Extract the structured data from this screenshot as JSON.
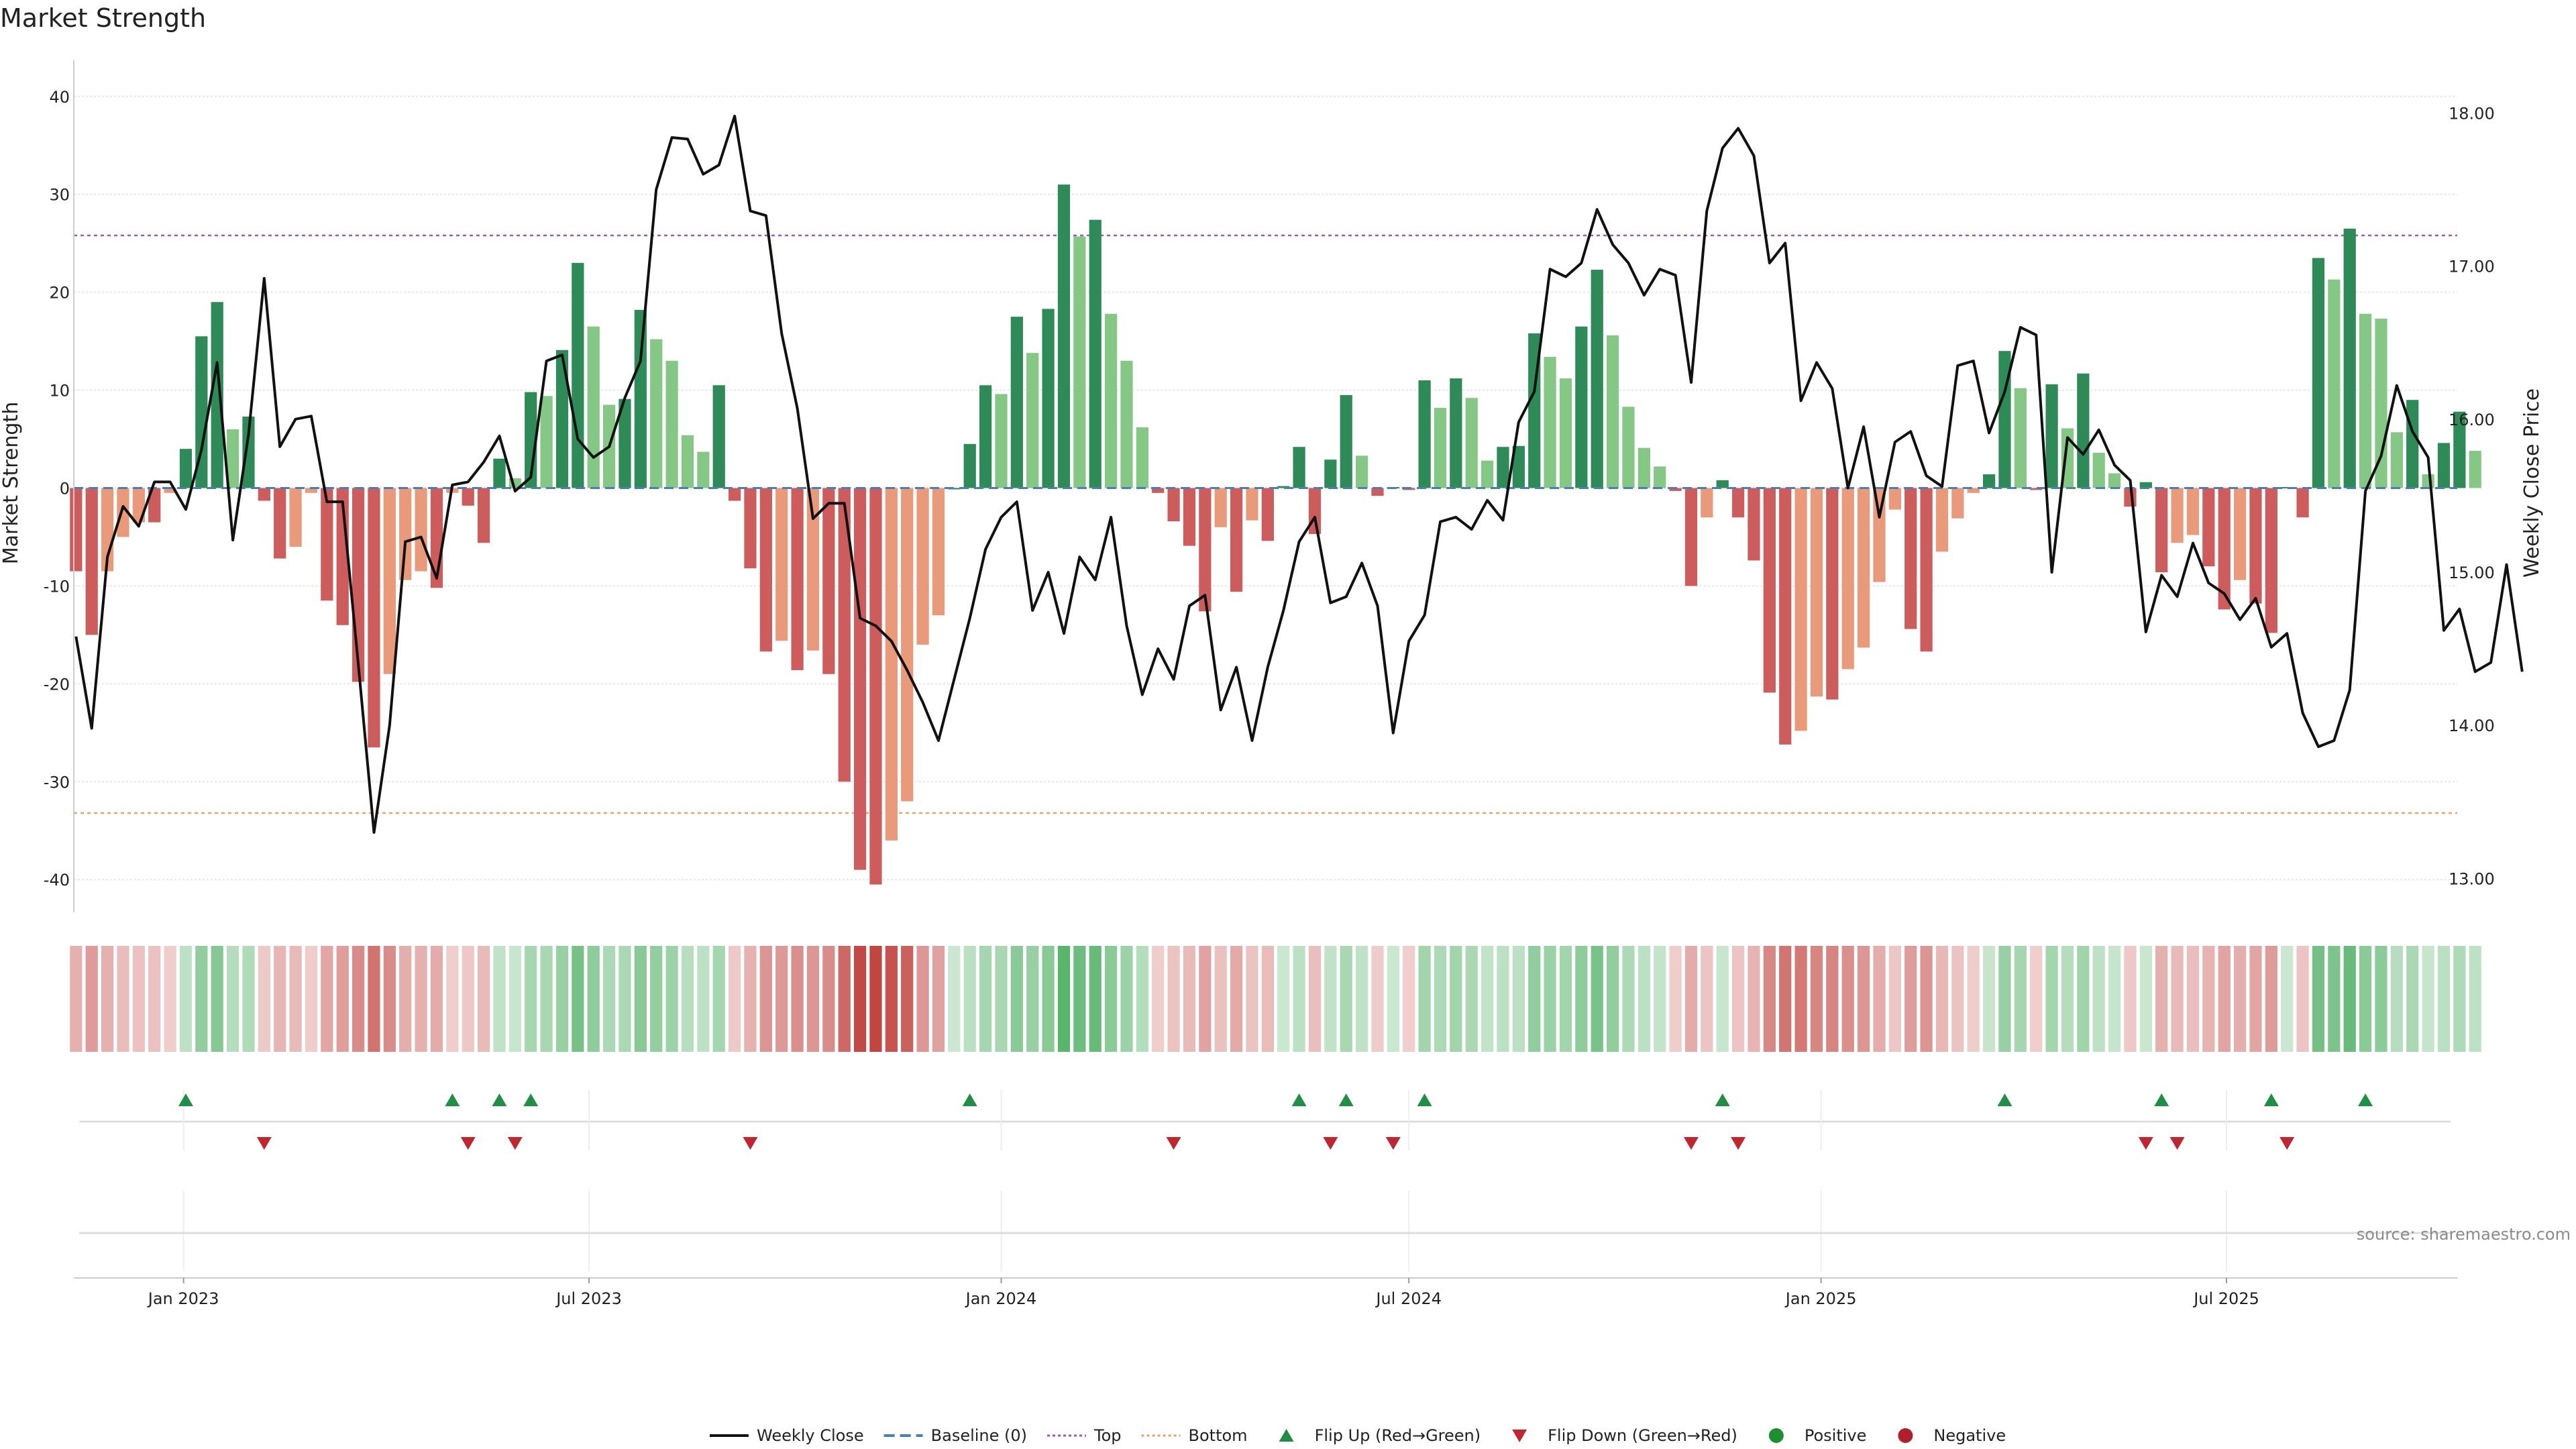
{
  "chart_data": {
    "type": "bar",
    "title": "Market Strength",
    "ylabel": "Market Strength",
    "y2label": "Weekly Close Price",
    "ylim": [
      -43,
      43
    ],
    "y2lim": [
      12.8,
      18.3
    ],
    "yticks": [
      40,
      30,
      20,
      10,
      0,
      -10,
      -20,
      -30,
      -40
    ],
    "y2ticks": [
      "18.00",
      "17.00",
      "16.00",
      "15.00",
      "14.00",
      "13.00"
    ],
    "top_threshold": 25.8,
    "bottom_threshold": -33.2,
    "x_start": "2022-11-13",
    "x_end": "2025-10-12",
    "first_week": "2022-11-14",
    "week_days": 7,
    "x_tick_labels": [
      {
        "label": "Jan 2023",
        "date": "2023-01-01"
      },
      {
        "label": "Jul 2023",
        "date": "2023-07-01"
      },
      {
        "label": "Jan 2024",
        "date": "2024-01-01"
      },
      {
        "label": "Jul 2024",
        "date": "2024-07-01"
      },
      {
        "label": "Jan 2025",
        "date": "2025-01-01"
      },
      {
        "label": "Jul 2025",
        "date": "2025-07-01"
      }
    ],
    "strength": [
      -8.5,
      -15,
      -8.5,
      -5,
      -3.5,
      -3.5,
      -0.5,
      4,
      15.5,
      19,
      6,
      7.3,
      -1.3,
      -7.2,
      -6,
      -0.5,
      -11.5,
      -14,
      -19.8,
      -26.5,
      -19,
      -9.4,
      -8.5,
      -10.2,
      -0.5,
      -1.8,
      -5.6,
      3,
      1,
      9.8,
      9.4,
      14.1,
      23,
      16.5,
      8.5,
      9.1,
      18.2,
      15.2,
      13,
      5.4,
      3.7,
      10.5,
      -1.3,
      -8.2,
      -16.7,
      -15.6,
      -18.6,
      -16.6,
      -19,
      -30,
      -39,
      -40.5,
      -36,
      -32,
      -16,
      -13,
      0,
      4.5,
      10.5,
      9.6,
      17.5,
      13.8,
      18.3,
      31,
      25.7,
      27.4,
      17.8,
      13,
      6.2,
      -0.5,
      -3.4,
      -5.9,
      -12.6,
      -4,
      -10.6,
      -3.3,
      -5.4,
      0.2,
      4.2,
      -4.7,
      2.9,
      9.5,
      3.3,
      -0.8,
      0.1,
      -0.2,
      11,
      8.2,
      11.2,
      9.2,
      2.8,
      4.2,
      4.3,
      15.8,
      13.4,
      11.2,
      16.5,
      22.3,
      15.6,
      8.3,
      4.1,
      2.2,
      -0.3,
      -10,
      -3,
      0.8,
      -3,
      -7.4,
      -20.9,
      -26.2,
      -24.8,
      -21.3,
      -21.6,
      -18.5,
      -16.3,
      -9.6,
      -2.2,
      -14.4,
      -16.7,
      -6.5,
      -3.1,
      -0.5,
      1.4,
      14,
      10.2,
      -0.2,
      10.6,
      6.1,
      11.7,
      3.6,
      1.5,
      -1.9,
      0.6,
      -8.6,
      -5.6,
      -4.8,
      -8,
      -12.4,
      -9.4,
      -11.8,
      -14.8,
      0.1,
      -3,
      23.5,
      21.3,
      26.5,
      17.8,
      17.3,
      5.7,
      9,
      1.4,
      4.6,
      7.8,
      3.8
    ],
    "close": [
      14.58,
      13.98,
      15.1,
      15.43,
      15.3,
      15.59,
      15.59,
      15.41,
      15.8,
      16.37,
      15.21,
      15.9,
      16.92,
      15.82,
      16.0,
      16.02,
      15.46,
      15.46,
      14.4,
      13.3,
      14.0,
      15.2,
      15.23,
      14.96,
      15.57,
      15.59,
      15.72,
      15.89,
      15.53,
      15.62,
      16.38,
      16.42,
      15.87,
      15.75,
      15.82,
      16.14,
      16.38,
      17.5,
      17.84,
      17.83,
      17.6,
      17.66,
      17.98,
      17.36,
      17.33,
      16.56,
      16.07,
      15.35,
      15.45,
      15.45,
      14.7,
      14.65,
      14.55,
      14.36,
      14.15,
      13.9,
      14.3,
      14.7,
      15.15,
      15.36,
      15.46,
      14.75,
      15.0,
      14.6,
      15.1,
      14.95,
      15.36,
      14.65,
      14.2,
      14.5,
      14.3,
      14.78,
      14.85,
      14.1,
      14.38,
      13.9,
      14.38,
      14.75,
      15.2,
      15.36,
      14.8,
      14.84,
      15.06,
      14.78,
      13.95,
      14.55,
      14.72,
      15.33,
      15.36,
      15.28,
      15.47,
      15.34,
      15.98,
      16.18,
      16.98,
      16.93,
      17.02,
      17.37,
      17.14,
      17.02,
      16.81,
      16.98,
      16.94,
      16.24,
      17.36,
      17.77,
      17.9,
      17.72,
      17.02,
      17.15,
      16.12,
      16.37,
      16.2,
      15.55,
      15.95,
      15.36,
      15.85,
      15.92,
      15.63,
      15.56,
      16.35,
      16.38,
      15.91,
      16.18,
      16.6,
      16.55,
      15.0,
      15.88,
      15.77,
      15.93,
      15.7,
      15.6,
      14.61,
      14.98,
      14.84,
      15.19,
      14.93,
      14.86,
      14.69,
      14.83,
      14.51,
      14.6,
      14.08,
      13.86,
      13.9,
      14.23,
      15.53,
      15.76,
      16.22,
      15.92,
      15.75,
      14.62,
      14.76,
      14.35,
      14.41,
      15.05,
      14.35
    ],
    "flip_up_weeks": [
      7,
      24,
      27,
      29,
      57,
      78,
      81,
      86,
      105,
      123,
      133,
      140,
      146
    ],
    "flip_down_weeks": [
      12,
      25,
      28,
      43,
      70,
      80,
      84,
      103,
      106,
      132,
      134,
      141
    ]
  },
  "legend": [
    {
      "label": "Weekly Close",
      "symbol": "line",
      "color": "#111111"
    },
    {
      "label": "Baseline (0)",
      "symbol": "dash",
      "color": "#4a7fb5"
    },
    {
      "label": "Top",
      "symbol": "dot",
      "color": "#9b59b6"
    },
    {
      "label": "Bottom",
      "symbol": "dot",
      "color": "#e8a36a"
    },
    {
      "label": "Flip Up (Red→Green)",
      "symbol": "tri-up",
      "color": "#1e8f45"
    },
    {
      "label": "Flip Down (Green→Red)",
      "symbol": "tri-down",
      "color": "#c0262d"
    },
    {
      "label": "Positive",
      "symbol": "circle",
      "color": "#1e8f2f"
    },
    {
      "label": "Negative",
      "symbol": "circle",
      "color": "#b0202a"
    }
  ],
  "colors": {
    "pos_strong": "#2e8b57",
    "pos_weak": "#85c785",
    "neg_strong": "#cd5c5c",
    "neg_weak": "#e99a7a",
    "line": "#111111",
    "grid": "#e6e6e6"
  },
  "source": "source: sharemaestro.com"
}
